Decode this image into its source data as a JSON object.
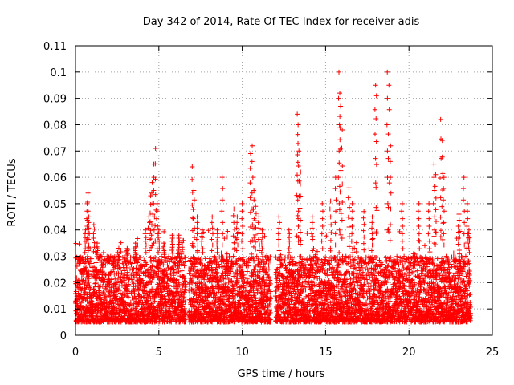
{
  "chart_data": {
    "type": "scatter",
    "title": "Day 342 of 2014, Rate Of TEC Index for receiver adis",
    "xlabel": "GPS time / hours",
    "ylabel": "ROTI / TECUs",
    "xlim": [
      0,
      25
    ],
    "ylim": [
      0,
      0.11
    ],
    "xticks": [
      0,
      5,
      10,
      15,
      20,
      25
    ],
    "xtick_labels": [
      "0",
      "5",
      "10",
      "15",
      "20",
      "25"
    ],
    "yticks": [
      0,
      0.01,
      0.02,
      0.03,
      0.04,
      0.05,
      0.06,
      0.07,
      0.08,
      0.09,
      0.1,
      0.11
    ],
    "ytick_labels": [
      "0",
      "0.01",
      "0.02",
      "0.03",
      "0.04",
      "0.05",
      "0.06",
      "0.07",
      "0.08",
      "0.09",
      "0.1",
      "0.11"
    ],
    "grid": true,
    "marker": "+",
    "color": "#ff0000",
    "series": [
      {
        "name": "ROTI",
        "coverage_hours": [
          [
            0.0,
            6.6
          ],
          [
            6.8,
            11.7
          ],
          [
            12.0,
            23.7
          ]
        ],
        "baseline_range": [
          0.005,
          0.03
        ],
        "x": [
          0.3,
          0.6,
          0.7,
          0.75,
          0.8,
          1.1,
          1.3,
          1.5,
          2.0,
          2.3,
          2.6,
          3.1,
          3.6,
          4.2,
          4.4,
          4.5,
          4.6,
          4.7,
          4.8,
          4.9,
          5.0,
          5.3,
          5.8,
          6.2,
          6.4,
          7.0,
          7.1,
          7.3,
          7.6,
          8.2,
          8.5,
          8.8,
          9.5,
          9.7,
          10.0,
          10.5,
          10.6,
          10.7,
          10.8,
          11.0,
          11.2,
          12.2,
          12.8,
          13.3,
          13.35,
          13.4,
          13.5,
          14.2,
          14.8,
          15.3,
          15.6,
          15.8,
          15.85,
          15.9,
          16.0,
          16.4,
          16.6,
          17.3,
          17.8,
          18.0,
          18.05,
          18.7,
          18.8,
          18.9,
          19.6,
          20.6,
          21.2,
          21.5,
          21.6,
          21.9,
          22.0,
          22.1,
          23.0,
          23.3,
          23.5,
          23.6
        ],
        "y": [
          0.028,
          0.04,
          0.05,
          0.054,
          0.045,
          0.042,
          0.035,
          0.03,
          0.028,
          0.025,
          0.03,
          0.033,
          0.035,
          0.04,
          0.045,
          0.053,
          0.058,
          0.065,
          0.071,
          0.05,
          0.04,
          0.035,
          0.038,
          0.038,
          0.036,
          0.064,
          0.055,
          0.045,
          0.04,
          0.045,
          0.04,
          0.06,
          0.048,
          0.045,
          0.05,
          0.069,
          0.072,
          0.055,
          0.049,
          0.045,
          0.04,
          0.045,
          0.04,
          0.084,
          0.08,
          0.07,
          0.062,
          0.045,
          0.05,
          0.051,
          0.06,
          0.1,
          0.092,
          0.087,
          0.078,
          0.056,
          0.05,
          0.047,
          0.045,
          0.095,
          0.091,
          0.1,
          0.095,
          0.072,
          0.05,
          0.05,
          0.05,
          0.065,
          0.061,
          0.082,
          0.074,
          0.06,
          0.046,
          0.06,
          0.05,
          0.04
        ]
      }
    ]
  }
}
